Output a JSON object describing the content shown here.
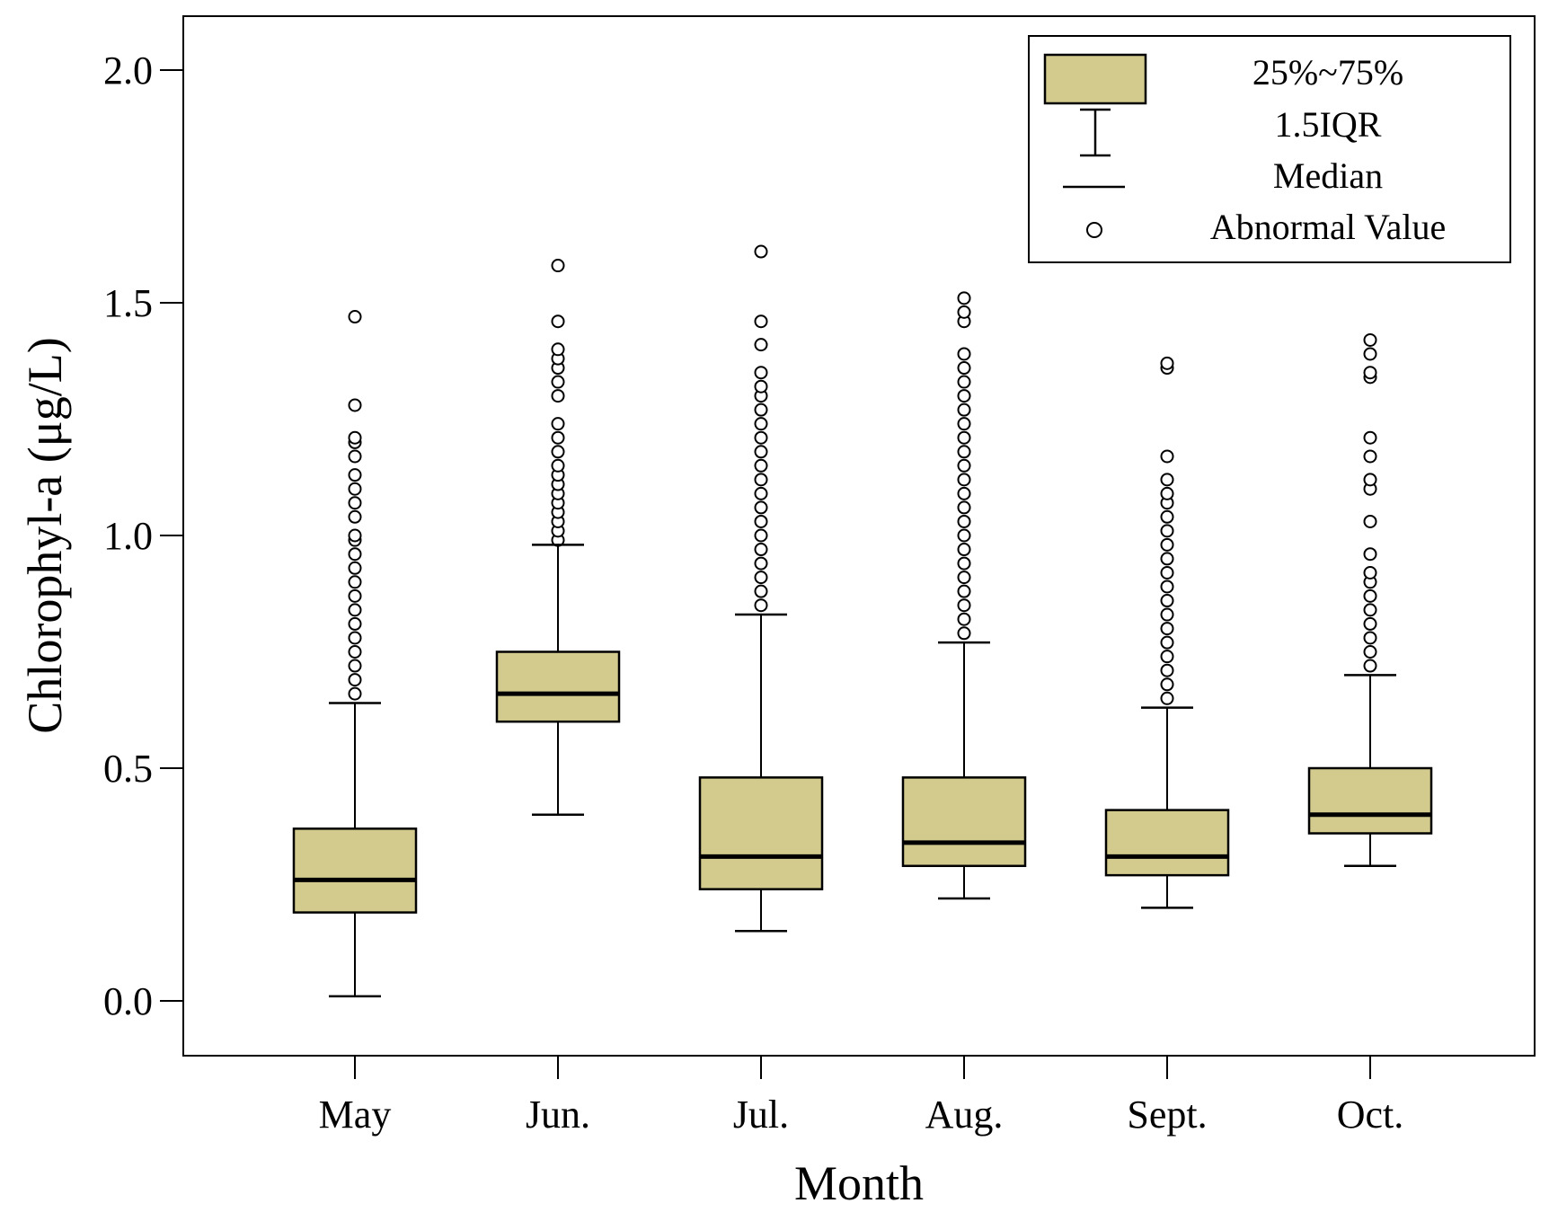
{
  "chart_data": {
    "type": "boxplot",
    "title": "",
    "xlabel": "Month",
    "ylabel": "Chlorophyl-a (μg/L)",
    "ylim": [
      -0.12,
      2.12
    ],
    "yticks": [
      0.0,
      0.5,
      1.0,
      1.5,
      2.0
    ],
    "ytick_labels": [
      "0.0",
      "0.5",
      "1.0",
      "1.5",
      "2.0"
    ],
    "grid": false,
    "legend_position": "top-right",
    "legend": {
      "box": "25%~75%",
      "whisker": "1.5IQR",
      "median": "Median",
      "outlier": "Abnormal Value"
    },
    "colors": {
      "box_fill": "#d3cb8e",
      "stroke": "#000000"
    },
    "categories": [
      "May",
      "Jun.",
      "Jul.",
      "Aug.",
      "Sept.",
      "Oct."
    ],
    "boxes": [
      {
        "category": "May",
        "whisker_low": 0.01,
        "q1": 0.19,
        "median": 0.26,
        "q3": 0.37,
        "whisker_high": 0.64,
        "outliers": [
          0.66,
          0.69,
          0.72,
          0.75,
          0.78,
          0.81,
          0.84,
          0.87,
          0.9,
          0.93,
          0.96,
          0.99,
          1.0,
          1.04,
          1.07,
          1.1,
          1.13,
          1.17,
          1.2,
          1.21,
          1.28,
          1.47
        ]
      },
      {
        "category": "Jun.",
        "whisker_low": 0.4,
        "q1": 0.6,
        "median": 0.66,
        "q3": 0.75,
        "whisker_high": 0.98,
        "outliers": [
          0.99,
          1.01,
          1.03,
          1.05,
          1.07,
          1.09,
          1.11,
          1.13,
          1.15,
          1.18,
          1.21,
          1.24,
          1.3,
          1.33,
          1.36,
          1.38,
          1.4,
          1.46,
          1.58
        ]
      },
      {
        "category": "Jul.",
        "whisker_low": 0.15,
        "q1": 0.24,
        "median": 0.31,
        "q3": 0.48,
        "whisker_high": 0.83,
        "outliers": [
          0.85,
          0.88,
          0.91,
          0.94,
          0.97,
          1.0,
          1.03,
          1.06,
          1.09,
          1.12,
          1.15,
          1.18,
          1.21,
          1.24,
          1.27,
          1.3,
          1.32,
          1.35,
          1.41,
          1.46,
          1.61
        ]
      },
      {
        "category": "Aug.",
        "whisker_low": 0.22,
        "q1": 0.29,
        "median": 0.34,
        "q3": 0.48,
        "whisker_high": 0.77,
        "outliers": [
          0.79,
          0.82,
          0.85,
          0.88,
          0.91,
          0.94,
          0.97,
          1.0,
          1.03,
          1.06,
          1.09,
          1.12,
          1.15,
          1.18,
          1.21,
          1.24,
          1.27,
          1.3,
          1.33,
          1.36,
          1.39,
          1.46,
          1.48,
          1.51
        ]
      },
      {
        "category": "Sept.",
        "whisker_low": 0.2,
        "q1": 0.27,
        "median": 0.31,
        "q3": 0.41,
        "whisker_high": 0.63,
        "outliers": [
          0.65,
          0.68,
          0.71,
          0.74,
          0.77,
          0.8,
          0.83,
          0.86,
          0.89,
          0.92,
          0.95,
          0.98,
          1.01,
          1.04,
          1.07,
          1.09,
          1.12,
          1.17,
          1.36,
          1.37
        ]
      },
      {
        "category": "Oct.",
        "whisker_low": 0.29,
        "q1": 0.36,
        "median": 0.4,
        "q3": 0.5,
        "whisker_high": 0.7,
        "outliers": [
          0.72,
          0.75,
          0.78,
          0.81,
          0.84,
          0.87,
          0.9,
          0.92,
          0.96,
          1.03,
          1.1,
          1.12,
          1.17,
          1.21,
          1.34,
          1.35,
          1.39,
          1.42
        ]
      }
    ]
  }
}
